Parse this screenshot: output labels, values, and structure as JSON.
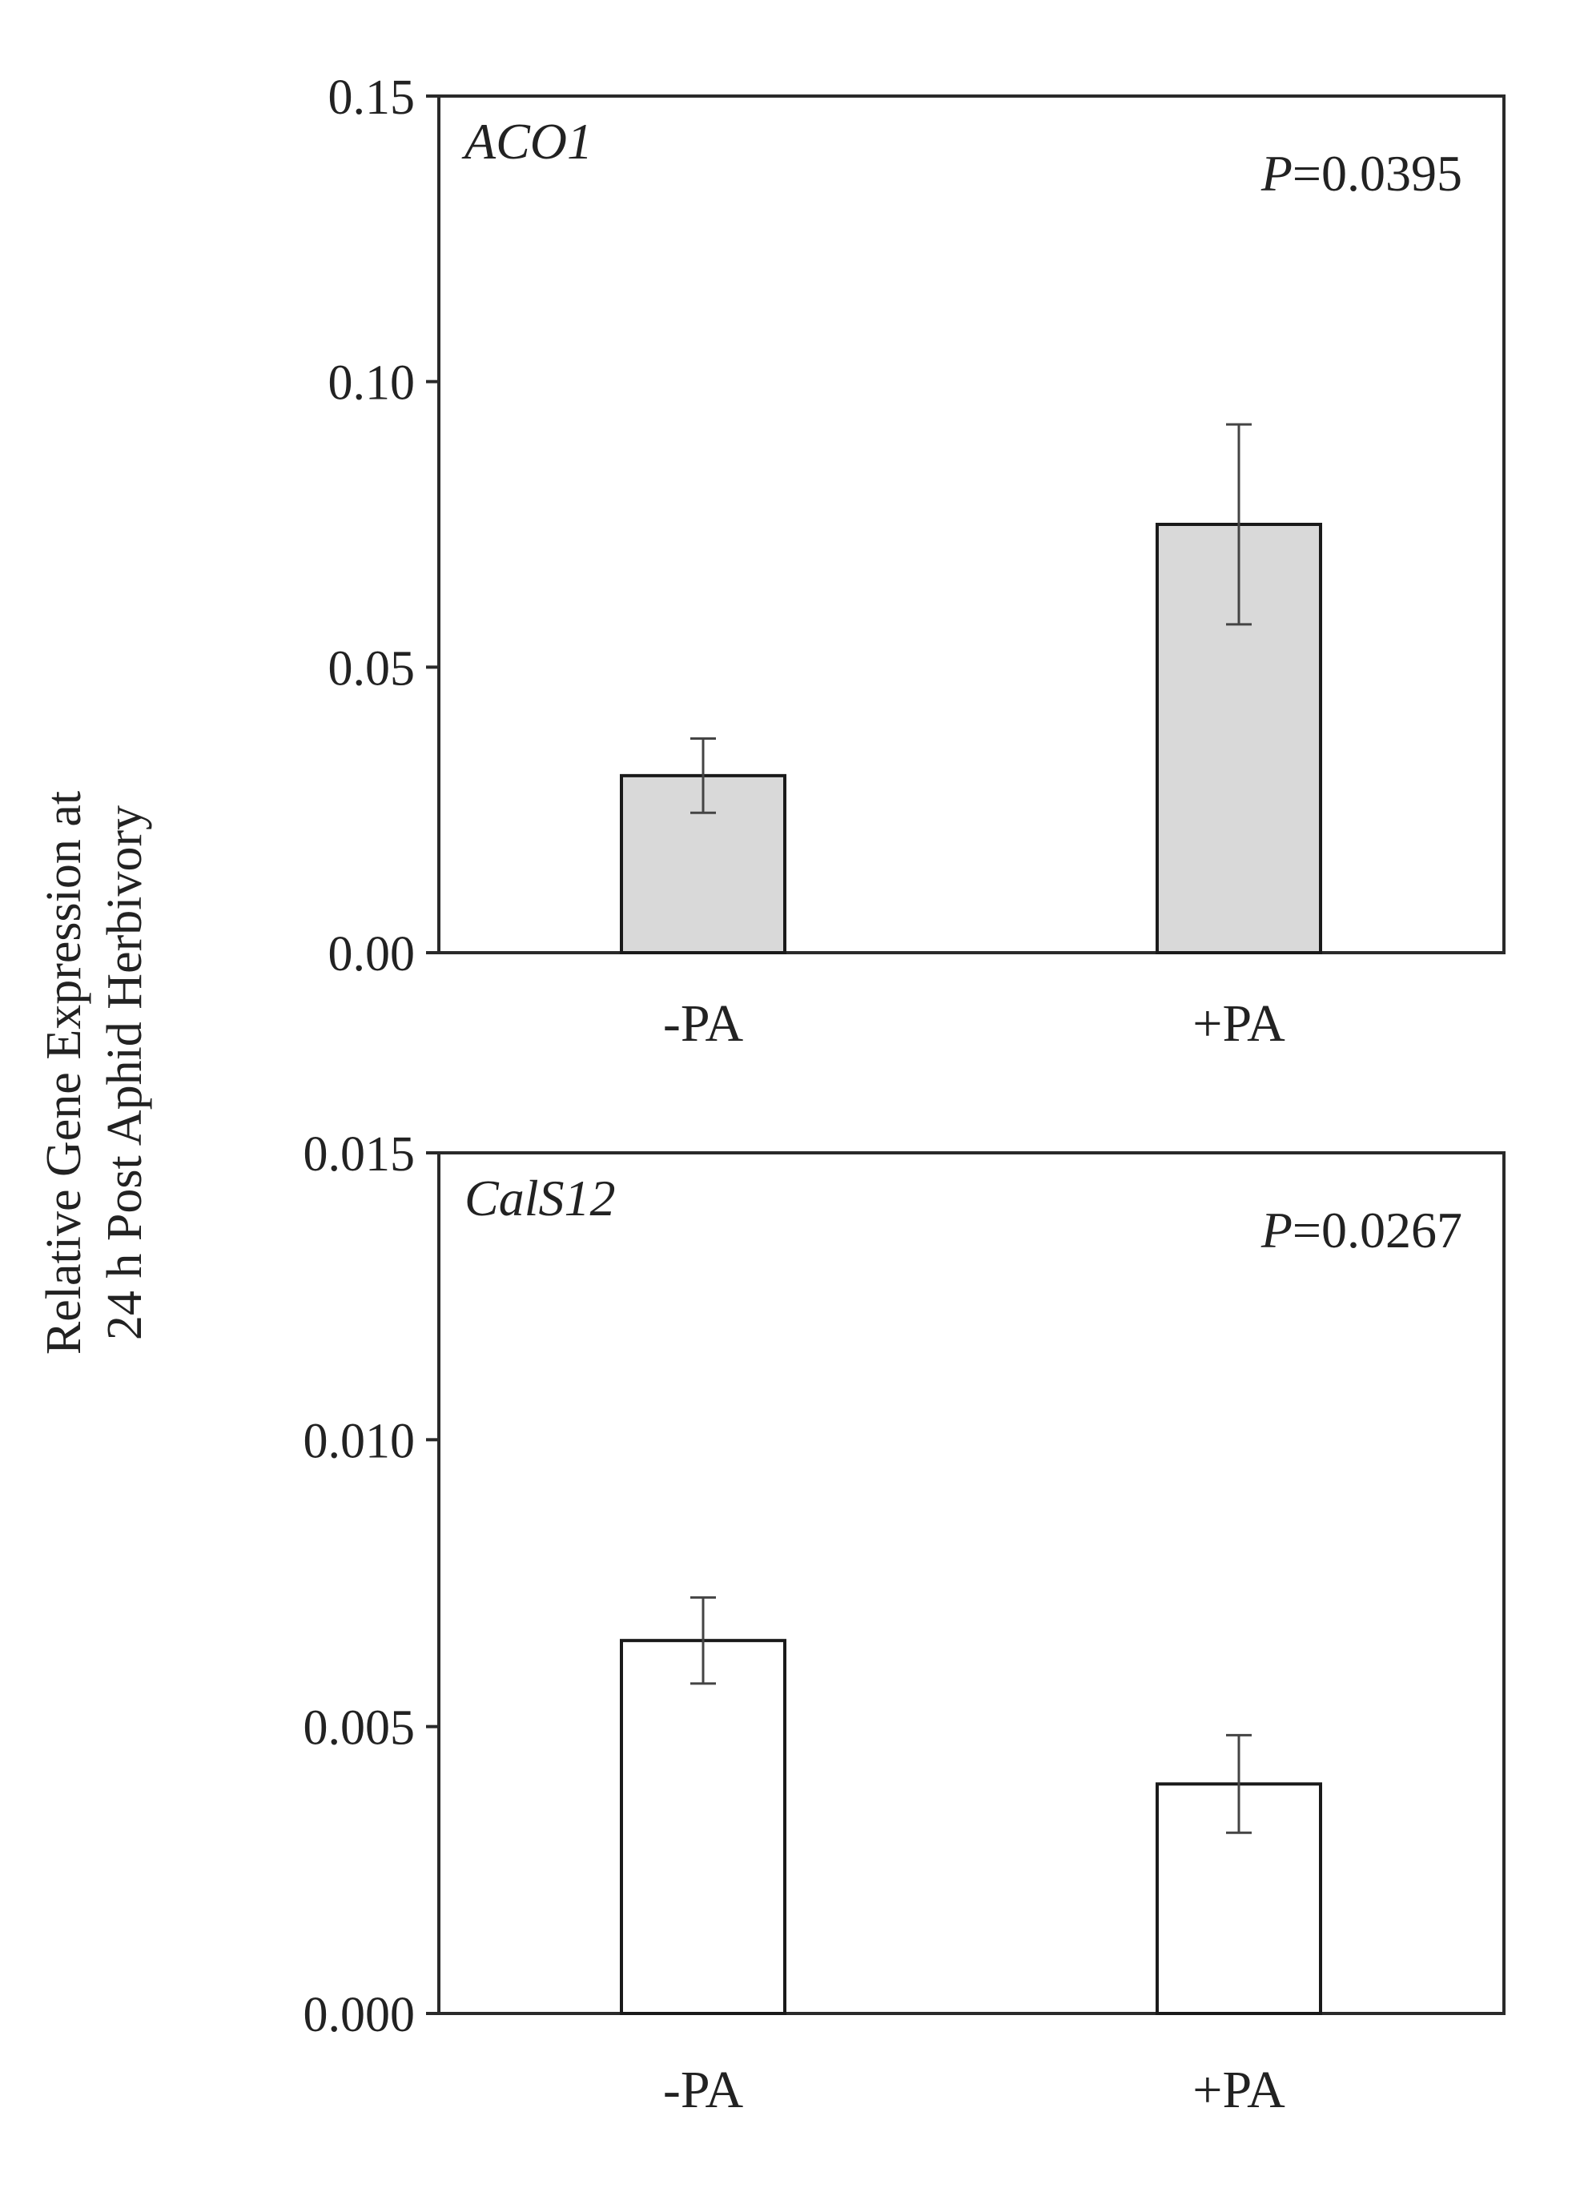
{
  "ylabel_line1": "Relative  Gene  Expression  at",
  "ylabel_line2": "24 h Post Aphid Herbivory",
  "chart_data": [
    {
      "type": "bar",
      "gene": "ACO1",
      "p_prefix": "P",
      "p_value": "=0.0395",
      "categories": [
        "-PA",
        "+PA"
      ],
      "values": [
        0.031,
        0.075
      ],
      "errors": [
        0.0065,
        0.0175
      ],
      "ylim": [
        0,
        0.15
      ],
      "yticks": [
        0.0,
        0.05,
        0.1,
        0.15
      ],
      "ytick_labels": [
        "0.00",
        "0.05",
        "0.10",
        "0.15"
      ],
      "bar_fill": "#d9d9d9",
      "xlabel": "",
      "ylabel": "Relative Gene Expression at 24 h Post Aphid Herbivory"
    },
    {
      "type": "bar",
      "gene": "CalS12",
      "p_prefix": "P",
      "p_value": "=0.0267",
      "categories": [
        "-PA",
        "+PA"
      ],
      "values": [
        0.0065,
        0.004
      ],
      "errors": [
        0.00075,
        0.00085
      ],
      "ylim": [
        0,
        0.015
      ],
      "yticks": [
        0.0,
        0.005,
        0.01,
        0.015
      ],
      "ytick_labels": [
        "0.000",
        "0.005",
        "0.010",
        "0.015"
      ],
      "bar_fill": "#ffffff",
      "xlabel": "",
      "ylabel": "Relative Gene Expression at 24 h Post Aphid Herbivory"
    }
  ]
}
